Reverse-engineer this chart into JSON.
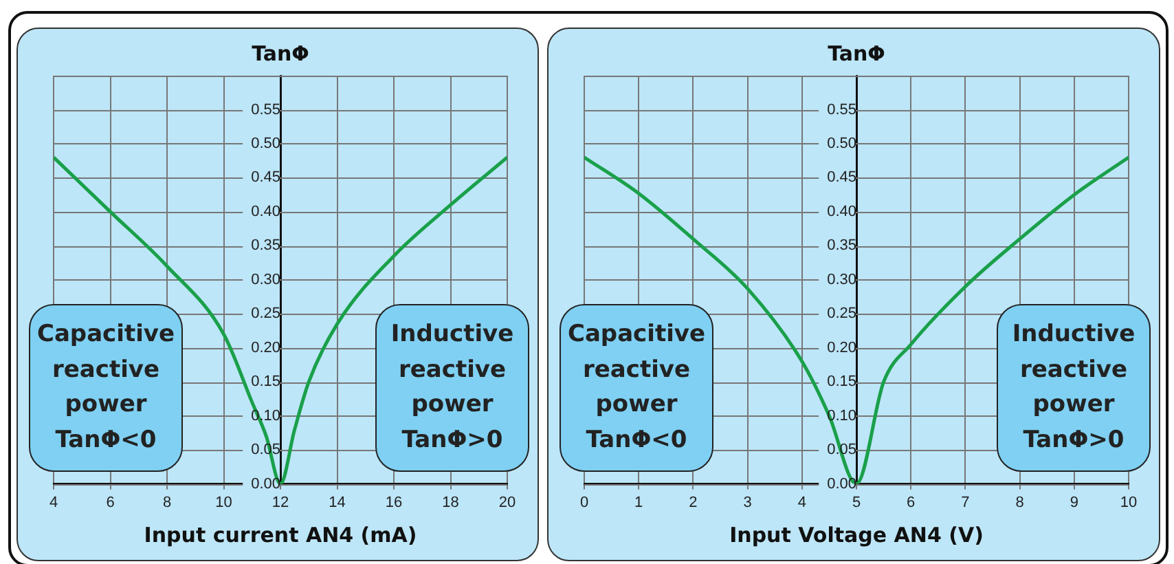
{
  "chart_data": [
    {
      "type": "line",
      "title": "TanΦ",
      "xlabel": "Input current AN4 (mA)",
      "x": [
        4,
        6,
        8,
        10,
        11,
        11.5,
        12,
        12.5,
        13,
        14,
        16,
        18,
        20
      ],
      "values": [
        0.48,
        0.4,
        0.32,
        0.22,
        0.12,
        0.07,
        0,
        0.08,
        0.15,
        0.235,
        0.335,
        0.41,
        0.48
      ],
      "color": "#1aa04a",
      "marker": "none",
      "line_style": "solid",
      "grid": true,
      "xlim": [
        4,
        20
      ],
      "xticks": [
        4,
        6,
        8,
        10,
        12,
        14,
        16,
        18,
        20
      ],
      "ylim": [
        0,
        0.6
      ],
      "yticks": [
        {
          "value": 0,
          "label": "0.00"
        },
        {
          "value": 0.05,
          "label": "0.05"
        },
        {
          "value": 0.1,
          "label": "0.10"
        },
        {
          "value": 0.15,
          "label": "0.15"
        },
        {
          "value": 0.2,
          "label": "0.20"
        },
        {
          "value": 0.25,
          "label": "0.25"
        },
        {
          "value": 0.3,
          "label": "0.30"
        },
        {
          "value": 0.35,
          "label": "0.35"
        },
        {
          "value": 0.4,
          "label": "0.40"
        },
        {
          "value": 0.45,
          "label": "0.45"
        },
        {
          "value": 0.5,
          "label": "0.50"
        },
        {
          "value": 0.55,
          "label": "0.55"
        },
        {
          "value": 0.6,
          "label": null
        }
      ],
      "annotations": [
        "Capacitive reactive power TanΦ<0",
        "Inductive reactive power TanΦ>0"
      ]
    },
    {
      "type": "line",
      "title": "TanΦ",
      "xlabel": "Input Voltage AN4 (V)",
      "x": [
        0,
        1,
        2,
        3,
        4,
        4.5,
        5,
        5.5,
        6,
        7,
        8,
        9,
        10
      ],
      "values": [
        0.48,
        0.427,
        0.36,
        0.287,
        0.18,
        0.1,
        0,
        0.15,
        0.205,
        0.29,
        0.36,
        0.425,
        0.48
      ],
      "color": "#1aa04a",
      "marker": "none",
      "line_style": "solid",
      "grid": true,
      "xlim": [
        0,
        10
      ],
      "xticks": [
        0,
        1,
        2,
        3,
        4,
        5,
        6,
        7,
        8,
        9,
        10
      ],
      "ylim": [
        0,
        0.6
      ],
      "yticks": [
        {
          "value": 0,
          "label": "0.00"
        },
        {
          "value": 0.05,
          "label": "0.05"
        },
        {
          "value": 0.1,
          "label": "0.10"
        },
        {
          "value": 0.15,
          "label": "0.15"
        },
        {
          "value": 0.2,
          "label": "0.20"
        },
        {
          "value": 0.25,
          "label": "0.25"
        },
        {
          "value": 0.3,
          "label": "0.30"
        },
        {
          "value": 0.35,
          "label": "0.35"
        },
        {
          "value": 0.4,
          "label": "0.40"
        },
        {
          "value": 0.45,
          "label": "0.45"
        },
        {
          "value": 0.5,
          "label": "0.50"
        },
        {
          "value": 0.55,
          "label": "0.55"
        },
        {
          "value": 0.6,
          "label": null
        }
      ],
      "annotations": [
        "Capacitive reactive power TanΦ<0",
        "Inductive reactive power TanΦ>0"
      ]
    }
  ]
}
